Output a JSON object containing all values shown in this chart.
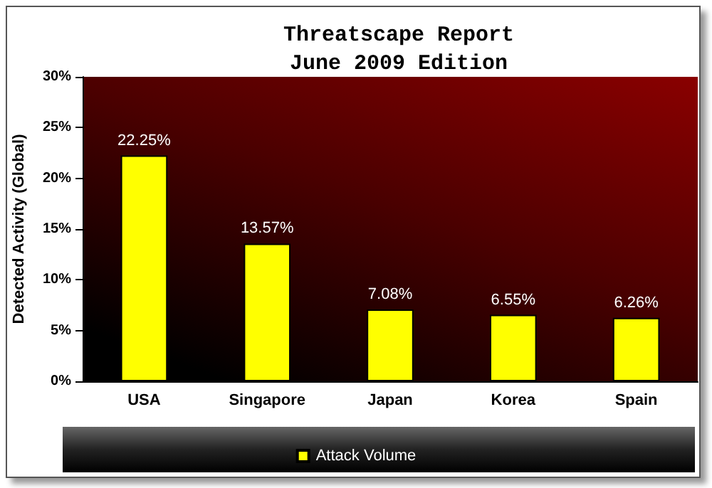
{
  "chart_data": {
    "type": "bar",
    "title": "Threatscape Report\nJune 2009 Edition",
    "ylabel": "Detected Activity (Global)",
    "categories": [
      "USA",
      "Singapore",
      "Japan",
      "Korea",
      "Spain"
    ],
    "series": [
      {
        "name": "Attack Volume",
        "color": "#ffff00",
        "values": [
          22.25,
          13.57,
          7.08,
          6.55,
          6.26
        ],
        "value_labels": [
          "22.25%",
          "13.57%",
          "7.08%",
          "6.55%",
          "6.26%"
        ]
      }
    ],
    "ylim": [
      0,
      30
    ],
    "yticks": [
      {
        "value": 0,
        "label": "0%"
      },
      {
        "value": 5,
        "label": "5%"
      },
      {
        "value": 10,
        "label": "10%"
      },
      {
        "value": 15,
        "label": "15%"
      },
      {
        "value": 20,
        "label": "20%"
      },
      {
        "value": 25,
        "label": "25%"
      },
      {
        "value": 30,
        "label": "30%"
      }
    ],
    "grid": false,
    "legend": "bottom"
  }
}
